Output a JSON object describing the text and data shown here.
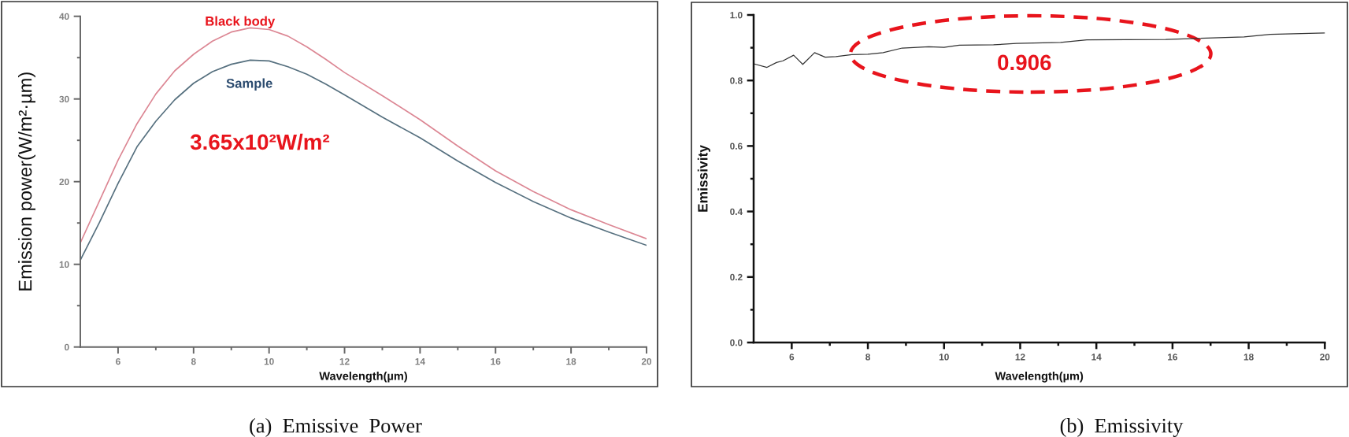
{
  "chart_data": [
    {
      "type": "line",
      "xlabel": "Wavelength(µm)",
      "ylabel": "Emission power(W/m²·µm)",
      "annotations": [
        "3.65x10²W/m²",
        "(a)  Emissive  Power"
      ],
      "xlim": [
        5,
        20
      ],
      "xticks": [
        6,
        {
          "value": 7,
          "label": null
        },
        8,
        {
          "value": 9,
          "label": null
        },
        10,
        {
          "value": 11,
          "label": null
        },
        12,
        {
          "value": 13,
          "label": null
        },
        14,
        {
          "value": 15,
          "label": null
        },
        16,
        {
          "value": 17,
          "label": null
        },
        18,
        {
          "value": 19,
          "label": null
        },
        20
      ],
      "ylim": [
        0,
        40
      ],
      "yticks": [
        0,
        {
          "value": 5,
          "label": null
        },
        10,
        {
          "value": 15,
          "label": null
        },
        20,
        {
          "value": 25,
          "label": null
        },
        30,
        {
          "value": 35,
          "label": null
        },
        40
      ],
      "x": [
        5.0,
        5.5,
        6.0,
        6.5,
        7.0,
        7.5,
        8.0,
        8.5,
        9.0,
        9.5,
        10.0,
        10.5,
        11.0,
        11.5,
        12.0,
        13.0,
        14.0,
        15.0,
        16.0,
        17.0,
        18.0,
        19.0,
        20.0
      ],
      "series": [
        {
          "name": "Black body",
          "color": "#dc8794",
          "values": [
            12.6,
            17.6,
            22.6,
            27.0,
            30.6,
            33.4,
            35.4,
            37.0,
            38.1,
            38.6,
            38.4,
            37.6,
            36.3,
            34.8,
            33.2,
            30.4,
            27.5,
            24.3,
            21.3,
            18.8,
            16.6,
            14.8,
            13.1
          ]
        },
        {
          "name": "Sample",
          "color": "#56707f",
          "values": [
            10.5,
            15.0,
            19.8,
            24.2,
            27.3,
            29.9,
            31.9,
            33.3,
            34.2,
            34.7,
            34.6,
            33.9,
            33.0,
            31.8,
            30.5,
            27.8,
            25.3,
            22.5,
            19.9,
            17.6,
            15.6,
            13.9,
            12.3
          ]
        }
      ]
    },
    {
      "type": "line",
      "xlabel": "Wavelength(µm)",
      "ylabel": "Emissivity",
      "annotations": [
        "0.906",
        "(b)  Emissivity"
      ],
      "xlim": [
        5,
        20
      ],
      "xticks": [
        6,
        {
          "value": 7,
          "label": null
        },
        8,
        {
          "value": 9,
          "label": null
        },
        10,
        {
          "value": 11,
          "label": null
        },
        12,
        {
          "value": 13,
          "label": null
        },
        14,
        {
          "value": 15,
          "label": null
        },
        16,
        {
          "value": 17,
          "label": null
        },
        18,
        {
          "value": 19,
          "label": null
        },
        20
      ],
      "ylim": [
        0,
        1.0
      ],
      "yticks": [
        {
          "value": 0,
          "label": "0.0"
        },
        {
          "value": 0.1,
          "label": null
        },
        0.2,
        {
          "value": 0.3,
          "label": null
        },
        0.4,
        {
          "value": 0.5,
          "label": null
        },
        0.6,
        {
          "value": 0.7,
          "label": null
        },
        0.8,
        {
          "value": 0.9,
          "label": null
        },
        {
          "value": 1.0,
          "label": "1.0"
        }
      ],
      "series": [
        {
          "color": "#333333",
          "x": [
            5.0,
            5.35,
            5.6,
            5.77,
            6.05,
            6.29,
            6.6,
            6.88,
            7.16,
            7.58,
            8.0,
            8.4,
            8.9,
            9.6,
            10.0,
            10.4,
            11.3,
            11.9,
            13.06,
            13.75,
            15.82,
            17.88,
            18.57,
            20.0
          ],
          "values": [
            0.851,
            0.84,
            0.855,
            0.86,
            0.877,
            0.849,
            0.885,
            0.871,
            0.873,
            0.879,
            0.88,
            0.885,
            0.899,
            0.903,
            0.901,
            0.908,
            0.909,
            0.913,
            0.916,
            0.924,
            0.925,
            0.933,
            0.941,
            0.945
          ]
        }
      ]
    }
  ]
}
